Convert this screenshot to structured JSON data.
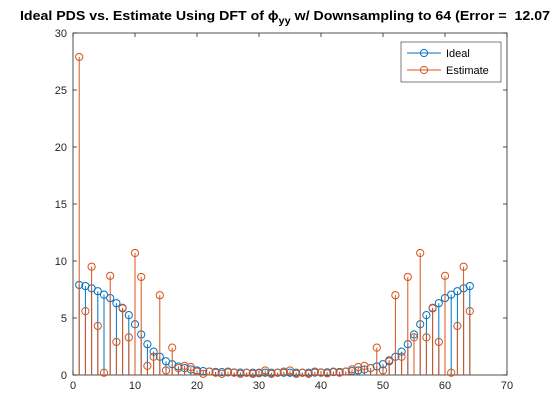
{
  "chart_data": {
    "type": "stem",
    "title": "Ideal PDS vs. Estimate Using DFT of ϕ",
    "title_subscript": "yy",
    "title_suffix": " w/ Downsampling to 64 (Error =  12.07",
    "xlabel": "",
    "ylabel": "",
    "xlim": [
      0,
      70
    ],
    "ylim": [
      0,
      30
    ],
    "xticks": [
      0,
      10,
      20,
      30,
      40,
      50,
      60,
      70
    ],
    "yticks": [
      0,
      5,
      10,
      15,
      20,
      25,
      30
    ],
    "grid": false,
    "legend": {
      "position": "top-right"
    },
    "series": [
      {
        "name": "Ideal",
        "color": "#0072BD",
        "marker": "circle",
        "x": [
          1,
          2,
          3,
          4,
          5,
          6,
          7,
          8,
          9,
          10,
          11,
          12,
          13,
          14,
          15,
          16,
          17,
          18,
          19,
          20,
          21,
          22,
          23,
          24,
          25,
          26,
          27,
          28,
          29,
          30,
          31,
          32,
          33,
          34,
          35,
          36,
          37,
          38,
          39,
          40,
          41,
          42,
          43,
          44,
          45,
          46,
          47,
          48,
          49,
          50,
          51,
          52,
          53,
          54,
          55,
          56,
          57,
          58,
          59,
          60,
          61,
          62,
          63,
          64
        ],
        "values": [
          7.9,
          7.8,
          7.6,
          7.35,
          7.05,
          6.75,
          6.3,
          5.85,
          5.25,
          4.45,
          3.55,
          2.7,
          2.05,
          1.6,
          1.2,
          0.95,
          0.75,
          0.6,
          0.48,
          0.4,
          0.34,
          0.3,
          0.27,
          0.25,
          0.23,
          0.22,
          0.21,
          0.2,
          0.2,
          0.2,
          0.2,
          0.2,
          0.2,
          0.2,
          0.2,
          0.2,
          0.2,
          0.2,
          0.21,
          0.22,
          0.23,
          0.25,
          0.27,
          0.3,
          0.34,
          0.4,
          0.48,
          0.6,
          0.75,
          0.95,
          1.2,
          1.6,
          2.05,
          2.7,
          3.55,
          4.45,
          5.25,
          5.85,
          6.3,
          6.75,
          7.05,
          7.35,
          7.6,
          7.8
        ]
      },
      {
        "name": "Estimate",
        "color": "#D95319",
        "marker": "circle",
        "x": [
          1,
          2,
          3,
          4,
          5,
          6,
          7,
          8,
          9,
          10,
          11,
          12,
          13,
          14,
          15,
          16,
          17,
          18,
          19,
          20,
          21,
          22,
          23,
          24,
          25,
          26,
          27,
          28,
          29,
          30,
          31,
          32,
          33,
          34,
          35,
          36,
          37,
          38,
          39,
          40,
          41,
          42,
          43,
          44,
          45,
          46,
          47,
          48,
          49,
          50,
          51,
          52,
          53,
          54,
          55,
          56,
          57,
          58,
          59,
          60,
          61,
          62,
          63,
          64
        ],
        "values": [
          27.9,
          5.6,
          9.5,
          4.3,
          0.2,
          8.7,
          2.9,
          5.9,
          3.3,
          10.7,
          8.6,
          0.8,
          1.6,
          7.0,
          0.4,
          2.4,
          0.6,
          0.8,
          0.7,
          0.3,
          0.1,
          0.3,
          0.2,
          0.1,
          0.3,
          0.2,
          0.1,
          0.2,
          0.1,
          0.15,
          0.4,
          0.1,
          0.2,
          0.3,
          0.4,
          0.1,
          0.2,
          0.1,
          0.3,
          0.2,
          0.15,
          0.3,
          0.2,
          0.3,
          0.5,
          0.7,
          0.8,
          0.6,
          2.4,
          0.4,
          1.3,
          7.0,
          1.6,
          8.6,
          3.3,
          10.7,
          3.3,
          5.9,
          2.9,
          8.7,
          0.2,
          4.3,
          9.5,
          5.6
        ]
      }
    ]
  }
}
